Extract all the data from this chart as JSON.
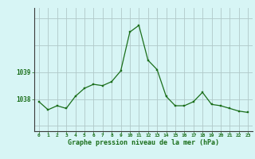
{
  "x": [
    0,
    1,
    2,
    3,
    4,
    5,
    6,
    7,
    8,
    9,
    10,
    11,
    12,
    13,
    14,
    15,
    16,
    17,
    18,
    19,
    20,
    21,
    22,
    23
  ],
  "y": [
    1037.9,
    1037.6,
    1037.75,
    1037.65,
    1038.1,
    1038.4,
    1038.55,
    1038.5,
    1038.65,
    1039.05,
    1040.5,
    1040.75,
    1039.45,
    1039.1,
    1038.1,
    1037.75,
    1037.75,
    1037.9,
    1038.25,
    1037.8,
    1037.75,
    1037.65,
    1037.55,
    1037.5
  ],
  "line_color": "#1a6e1a",
  "marker_color": "#1a6e1a",
  "bg_color": "#d7f5f5",
  "grid_color": "#b0c8c8",
  "xlabel": "Graphe pression niveau de la mer (hPa)",
  "xlabel_color": "#1a6e1a",
  "tick_label_color": "#1a6e1a",
  "ytick_labels": [
    "1038",
    "1039"
  ],
  "ytick_values": [
    1038,
    1039
  ],
  "ylim": [
    1036.8,
    1041.4
  ],
  "xlim": [
    -0.5,
    23.5
  ],
  "xtick_values": [
    0,
    1,
    2,
    3,
    4,
    5,
    6,
    7,
    8,
    9,
    10,
    11,
    12,
    13,
    14,
    15,
    16,
    17,
    18,
    19,
    20,
    21,
    22,
    23
  ],
  "xtick_labels": [
    "0",
    "1",
    "2",
    "3",
    "4",
    "5",
    "6",
    "7",
    "8",
    "9",
    "10",
    "11",
    "12",
    "13",
    "14",
    "15",
    "16",
    "17",
    "18",
    "19",
    "20",
    "21",
    "22",
    "23"
  ],
  "hgrid_values": [
    1037,
    1038,
    1039,
    1040,
    1041
  ],
  "vgrid_values": [
    0,
    1,
    2,
    3,
    4,
    5,
    6,
    7,
    8,
    9,
    10,
    11,
    12,
    13,
    14,
    15,
    16,
    17,
    18,
    19,
    20,
    21,
    22,
    23
  ]
}
